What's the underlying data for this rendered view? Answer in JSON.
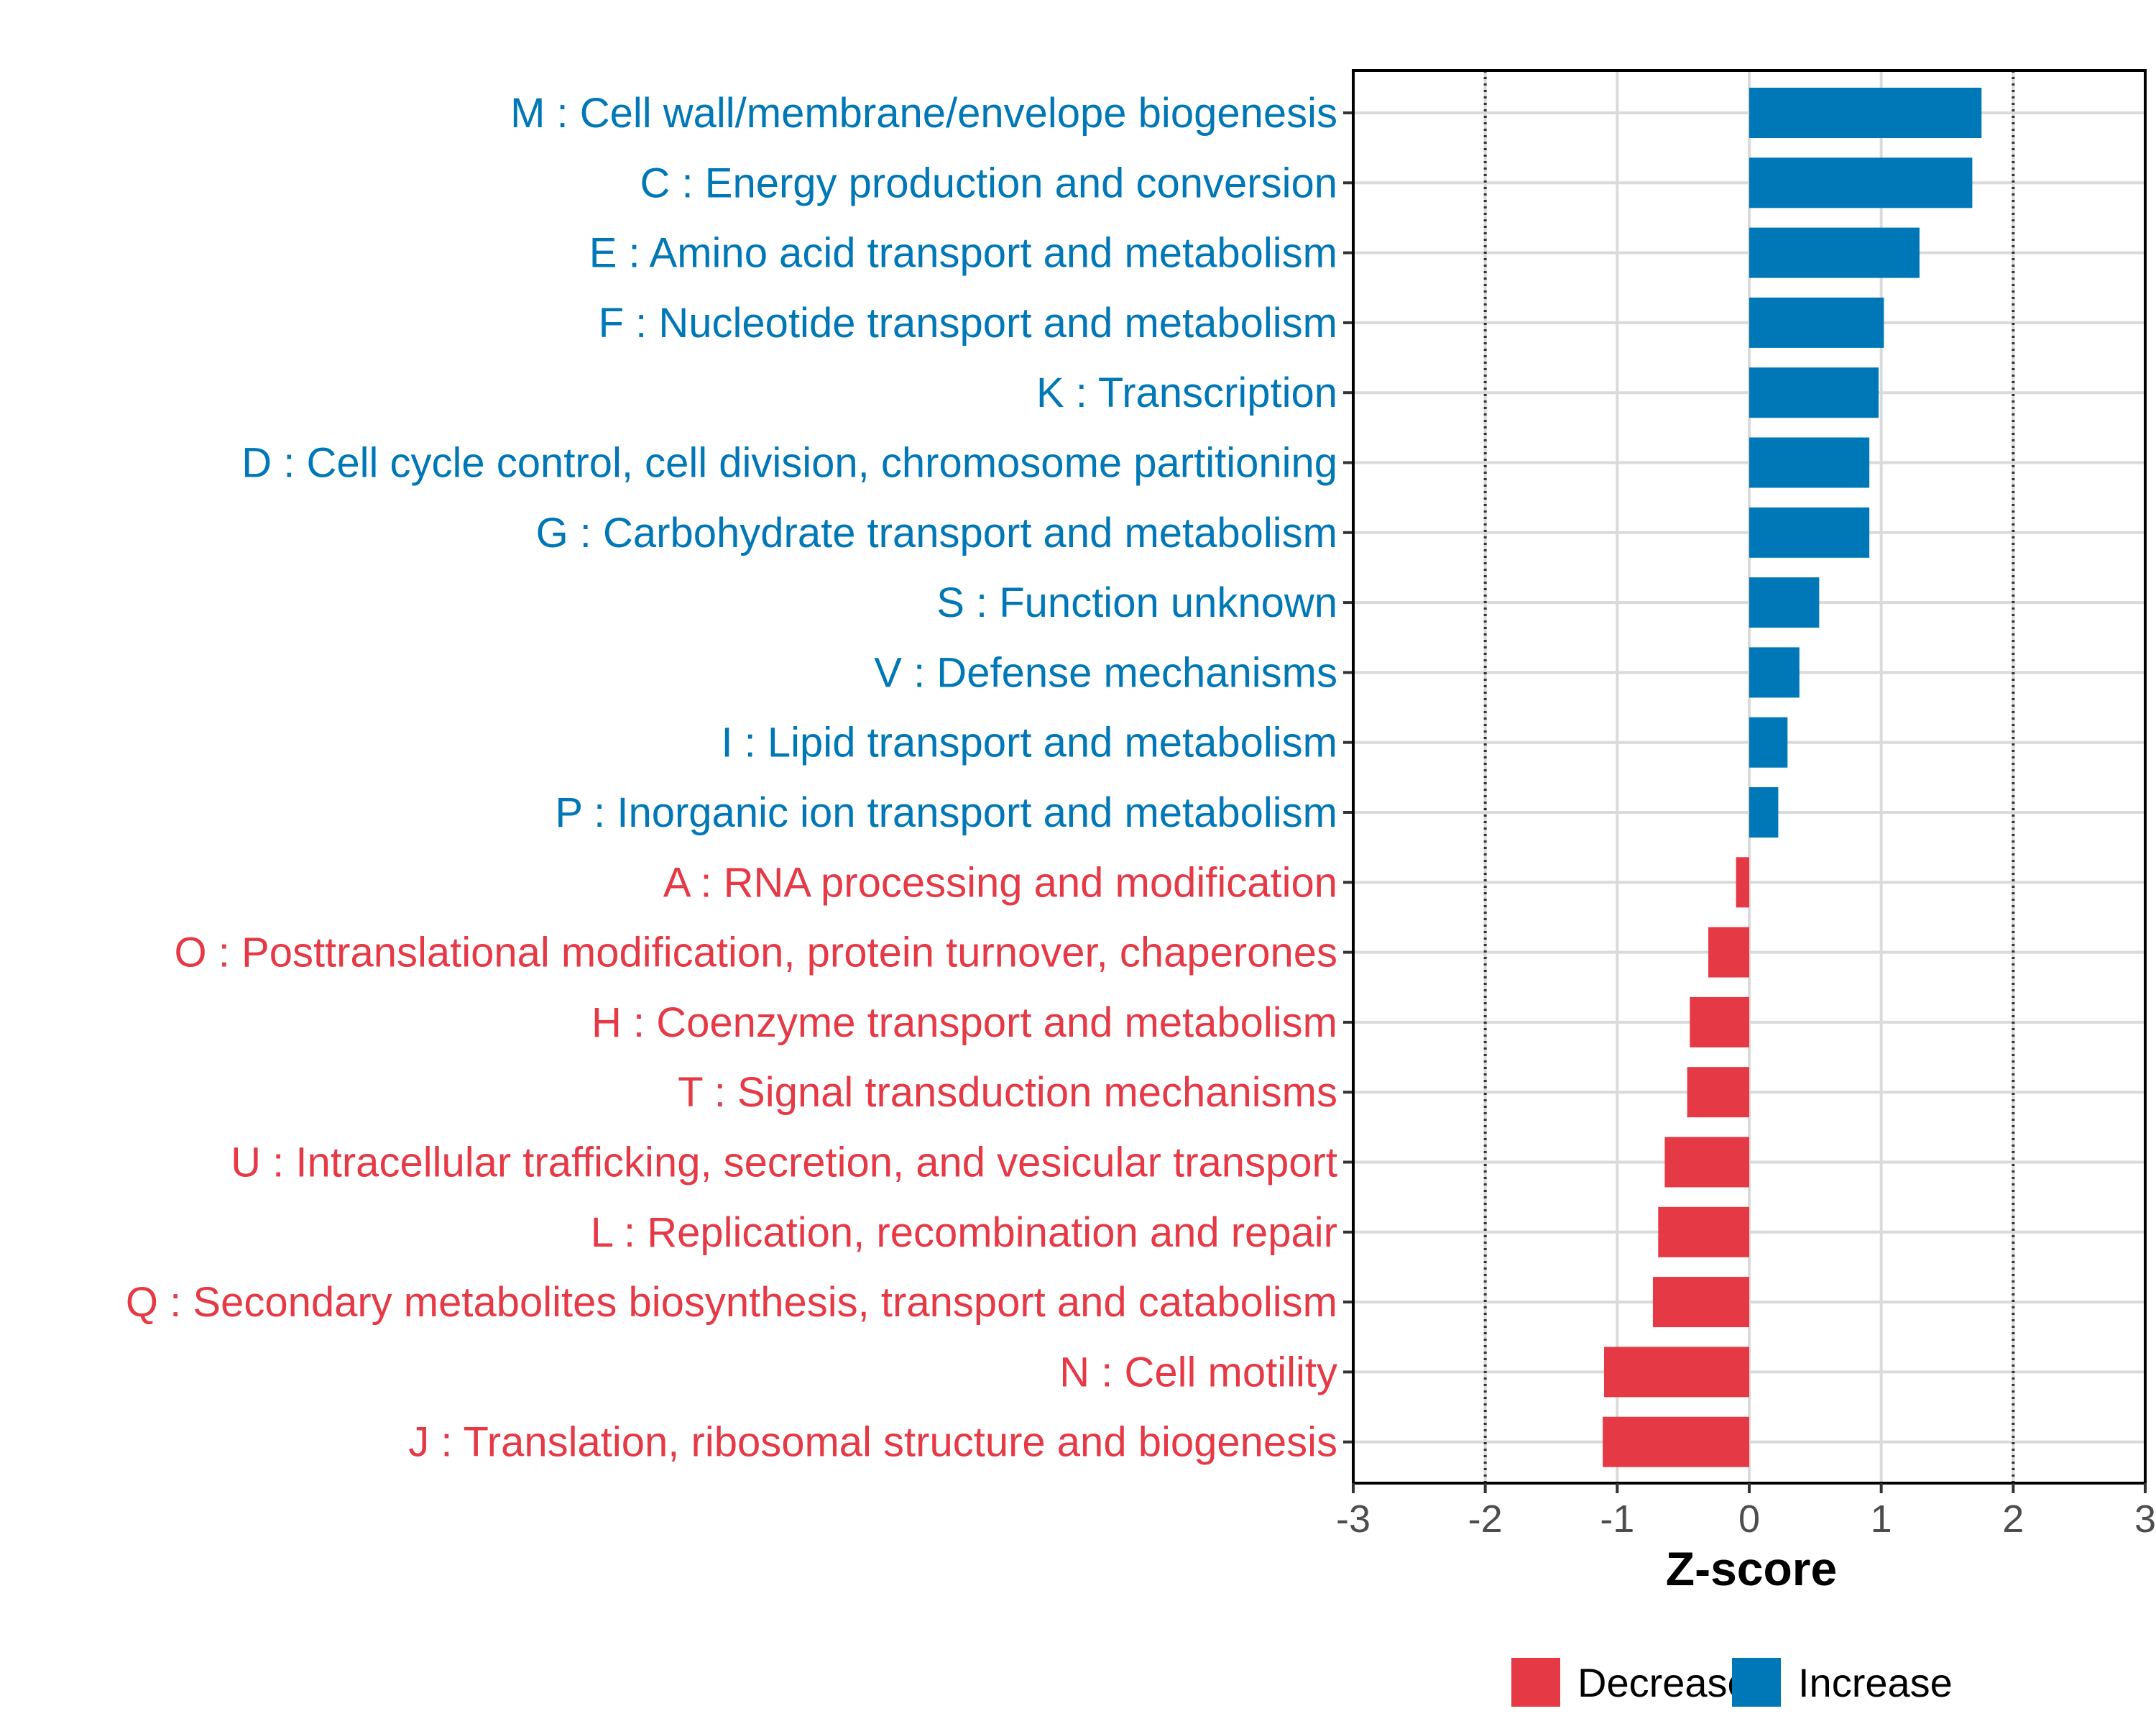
{
  "chart_data": {
    "type": "bar",
    "orientation": "horizontal",
    "xlabel": "Z-score",
    "ylabel": "",
    "xlim": [
      -3,
      3
    ],
    "xticks": [
      -3,
      -2,
      -1,
      0,
      1,
      2,
      3
    ],
    "xtick_labels": [
      "-3",
      "-2",
      "-1",
      "0",
      "1",
      "2",
      "3"
    ],
    "reference_lines": [
      -2,
      2
    ],
    "grid": true,
    "colors": {
      "Decrease": "#E63946",
      "Increase": "#0077B6"
    },
    "legend": {
      "position": "bottom",
      "entries": [
        {
          "label": "Decrease",
          "color": "#E63946"
        },
        {
          "label": "Increase",
          "color": "#0077B6"
        }
      ]
    },
    "bars": [
      {
        "label": "M : Cell wall/membrane/envelope biogenesis",
        "value": 1.76,
        "group": "Increase"
      },
      {
        "label": "C : Energy production and conversion",
        "value": 1.69,
        "group": "Increase"
      },
      {
        "label": "E : Amino acid transport and metabolism",
        "value": 1.29,
        "group": "Increase"
      },
      {
        "label": "F : Nucleotide transport and metabolism",
        "value": 1.02,
        "group": "Increase"
      },
      {
        "label": "K : Transcription",
        "value": 0.98,
        "group": "Increase"
      },
      {
        "label": "D : Cell cycle control, cell division, chromosome partitioning",
        "value": 0.91,
        "group": "Increase"
      },
      {
        "label": "G : Carbohydrate transport and metabolism",
        "value": 0.91,
        "group": "Increase"
      },
      {
        "label": "S : Function unknown",
        "value": 0.53,
        "group": "Increase"
      },
      {
        "label": "V : Defense mechanisms",
        "value": 0.38,
        "group": "Increase"
      },
      {
        "label": "I : Lipid transport and metabolism",
        "value": 0.29,
        "group": "Increase"
      },
      {
        "label": "P : Inorganic ion transport and metabolism",
        "value": 0.22,
        "group": "Increase"
      },
      {
        "label": "A : RNA processing and modification",
        "value": -0.1,
        "group": "Decrease"
      },
      {
        "label": "O : Posttranslational modification, protein turnover, chaperones",
        "value": -0.31,
        "group": "Decrease"
      },
      {
        "label": "H : Coenzyme transport and metabolism",
        "value": -0.45,
        "group": "Decrease"
      },
      {
        "label": "T : Signal transduction mechanisms",
        "value": -0.47,
        "group": "Decrease"
      },
      {
        "label": "U : Intracellular trafficking, secretion, and vesicular transport",
        "value": -0.64,
        "group": "Decrease"
      },
      {
        "label": "L : Replication, recombination and repair",
        "value": -0.69,
        "group": "Decrease"
      },
      {
        "label": "Q : Secondary metabolites biosynthesis, transport and catabolism",
        "value": -0.73,
        "group": "Decrease"
      },
      {
        "label": "N : Cell motility",
        "value": -1.1,
        "group": "Decrease"
      },
      {
        "label": "J : Translation, ribosomal structure and biogenesis",
        "value": -1.11,
        "group": "Decrease"
      }
    ]
  }
}
